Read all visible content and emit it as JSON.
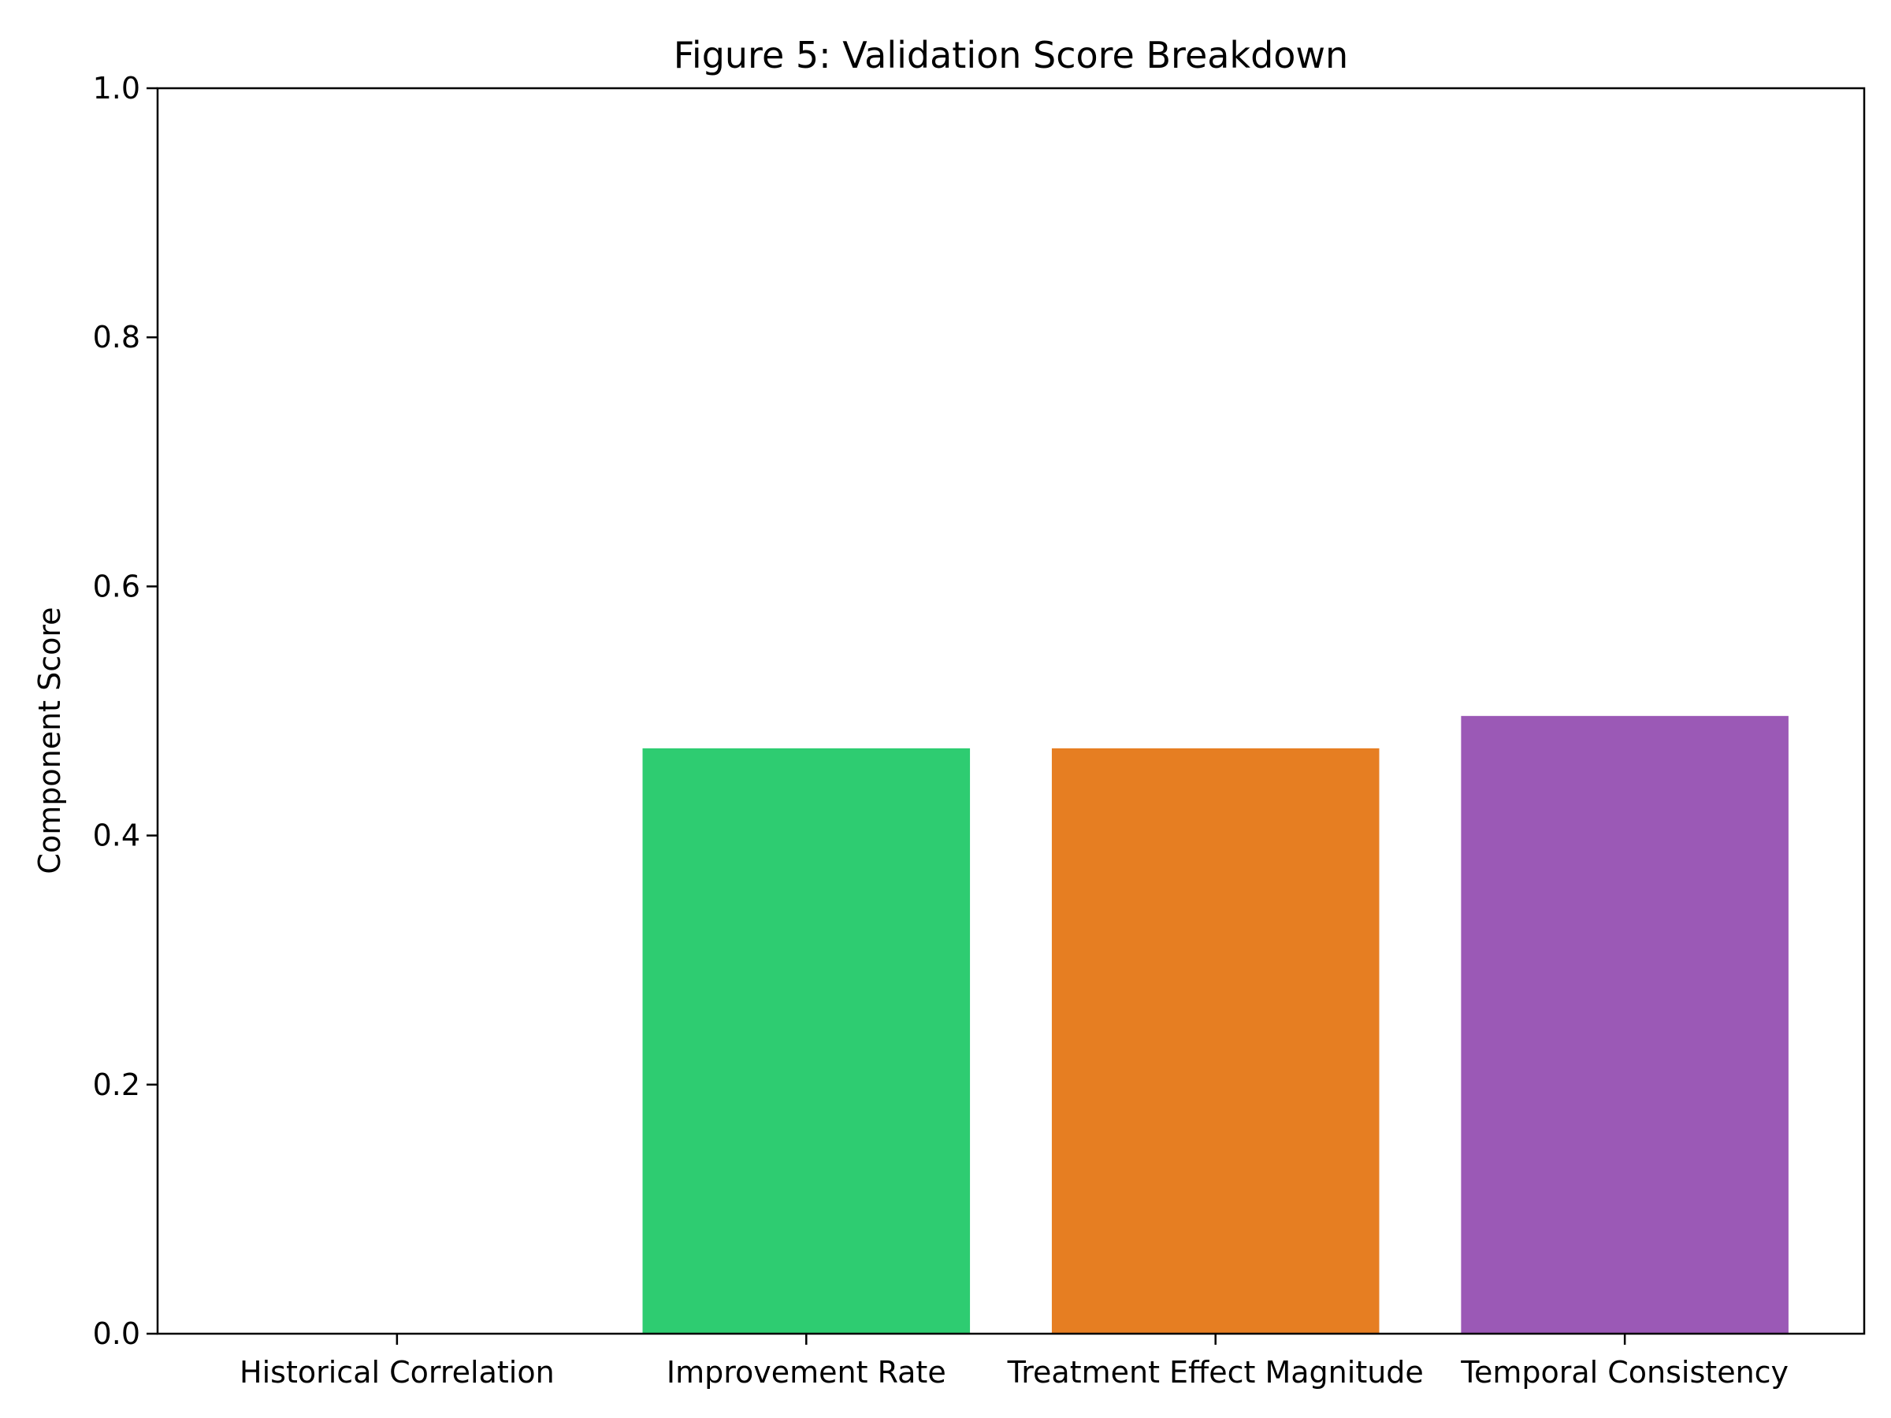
{
  "chart_data": {
    "type": "bar",
    "title": "Figure 5: Validation Score Breakdown",
    "xlabel": "",
    "ylabel": "Component Score",
    "categories": [
      "Historical Correlation",
      "Improvement Rate",
      "Treatment Effect Magnitude",
      "Temporal Consistency"
    ],
    "values": [
      0.0,
      0.47,
      0.47,
      0.496
    ],
    "colors": [
      "#3498db",
      "#2ecc71",
      "#e67e22",
      "#9b59b6"
    ],
    "ylim": [
      0,
      1.0
    ],
    "yticks": [
      "0.0",
      "0.2",
      "0.4",
      "0.6",
      "0.8",
      "1.0"
    ],
    "grid": false,
    "legend": "none"
  }
}
